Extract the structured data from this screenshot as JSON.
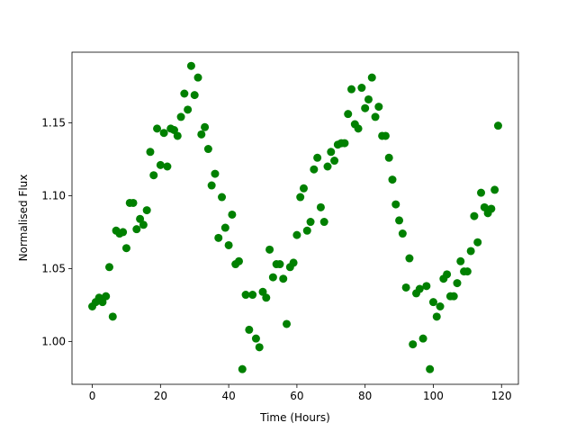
{
  "chart_data": {
    "type": "scatter",
    "xlabel": "Time (Hours)",
    "ylabel": "Normalised Flux",
    "x": [
      0,
      1,
      2,
      3,
      4,
      5,
      6,
      7,
      8,
      9,
      10,
      11,
      12,
      13,
      14,
      15,
      16,
      17,
      18,
      19,
      20,
      21,
      22,
      23,
      24,
      25,
      26,
      27,
      28,
      29,
      30,
      31,
      32,
      33,
      34,
      35,
      36,
      37,
      38,
      39,
      40,
      41,
      42,
      43,
      44,
      45,
      46,
      47,
      48,
      49,
      50,
      51,
      52,
      53,
      54,
      55,
      56,
      57,
      58,
      59,
      60,
      61,
      62,
      63,
      64,
      65,
      66,
      67,
      68,
      69,
      70,
      71,
      72,
      73,
      74,
      75,
      76,
      77,
      78,
      79,
      80,
      81,
      82,
      83,
      84,
      85,
      86,
      87,
      88,
      89,
      90,
      91,
      92,
      93,
      94,
      95,
      96,
      97,
      98,
      99,
      100,
      101,
      102,
      103,
      104,
      105,
      106,
      107,
      108,
      109,
      110,
      111,
      112,
      113,
      114,
      115,
      116,
      117,
      118,
      119
    ],
    "series": [
      {
        "color": "#008000",
        "values": [
          1.024,
          1.027,
          1.03,
          1.027,
          1.031,
          1.051,
          1.017,
          1.076,
          1.074,
          1.075,
          1.064,
          1.095,
          1.095,
          1.077,
          1.084,
          1.08,
          1.09,
          1.13,
          1.114,
          1.146,
          1.121,
          1.143,
          1.12,
          1.146,
          1.145,
          1.141,
          1.154,
          1.17,
          1.159,
          1.189,
          1.169,
          1.181,
          1.142,
          1.147,
          1.132,
          1.107,
          1.115,
          1.071,
          1.099,
          1.078,
          1.066,
          1.087,
          1.053,
          1.055,
          0.981,
          1.032,
          1.008,
          1.032,
          1.002,
          0.996,
          1.034,
          1.03,
          1.063,
          1.044,
          1.053,
          1.053,
          1.043,
          1.012,
          1.051,
          1.054,
          1.073,
          1.099,
          1.105,
          1.076,
          1.082,
          1.118,
          1.126,
          1.092,
          1.082,
          1.12,
          1.13,
          1.124,
          1.135,
          1.136,
          1.136,
          1.156,
          1.173,
          1.149,
          1.146,
          1.174,
          1.16,
          1.166,
          1.181,
          1.154,
          1.161,
          1.141,
          1.141,
          1.126,
          1.111,
          1.094,
          1.083,
          1.074,
          1.037,
          1.057,
          0.998,
          1.033,
          1.036,
          1.002,
          1.038,
          0.981,
          1.027,
          1.017,
          1.024,
          1.043,
          1.046,
          1.031,
          1.031,
          1.04,
          1.055,
          1.048,
          1.048,
          1.062,
          1.086,
          1.068,
          1.102,
          1.092,
          1.088,
          1.091,
          1.104,
          1.148
        ]
      }
    ],
    "xlim": [
      -5.95,
      124.95
    ],
    "xticks": [
      0,
      20,
      40,
      60,
      80,
      100,
      120
    ],
    "ylim": [
      0.9706,
      1.1984
    ],
    "yticks": [
      {
        "value": 1.0,
        "label": "1.00"
      },
      {
        "value": 1.05,
        "label": "1.05"
      },
      {
        "value": 1.1,
        "label": "1.10"
      },
      {
        "value": 1.15,
        "label": "1.15"
      }
    ]
  }
}
